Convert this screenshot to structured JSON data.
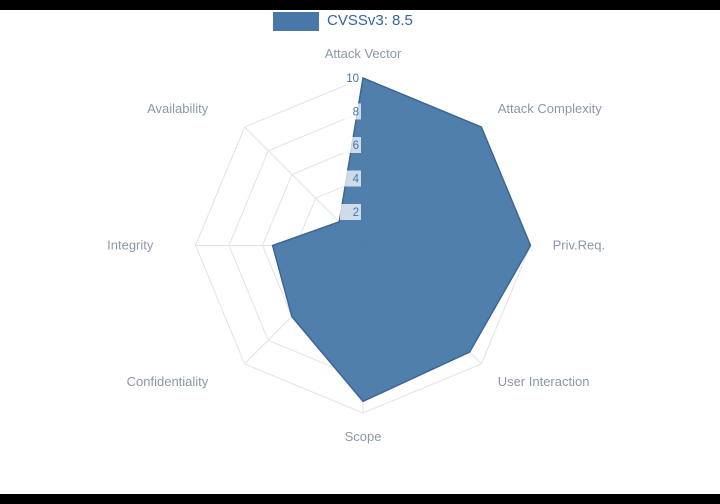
{
  "page": {
    "background": "#000000",
    "canvas_background": "#ffffff"
  },
  "legend": {
    "label": "CVSSv3: 8.5"
  },
  "chart_data": {
    "type": "radar",
    "title": "",
    "categories": [
      "Attack Vector",
      "Attack Complexity",
      "Priv.Req.",
      "User Interaction",
      "Scope",
      "Confidentiality",
      "Integrity",
      "Availability"
    ],
    "series": [
      {
        "name": "CVSSv3: 8.5",
        "values": [
          10,
          10,
          10,
          9,
          9.3,
          6,
          5.4,
          2
        ]
      }
    ],
    "radial_ticks": [
      2,
      4,
      6,
      8,
      10
    ],
    "radial_range": [
      0,
      10
    ],
    "grid": true,
    "grid_shape": "polygon",
    "legend_position": "top",
    "colors": {
      "fill": "#4878a8",
      "stroke": "#3b6696",
      "grid": "#dfe3e8",
      "axis_label": "#8b98a8",
      "tick_label": "#4878a8",
      "tick_bg": "rgba(255,255,255,0.72)",
      "legend_text": "#36659c"
    }
  }
}
